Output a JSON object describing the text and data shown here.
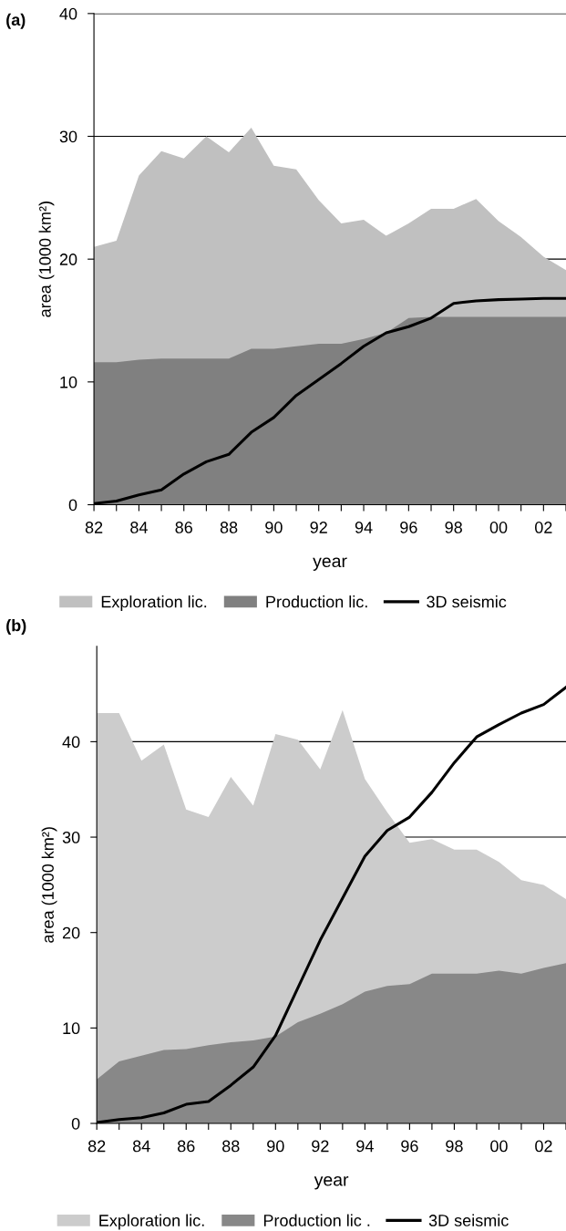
{
  "chart_data": [
    {
      "type": "area",
      "title": "(a)",
      "xlabel": "year",
      "ylabel": "area (1000 km²)",
      "x": [
        1982,
        1983,
        1984,
        1985,
        1986,
        1987,
        1988,
        1989,
        1990,
        1991,
        1992,
        1993,
        1994,
        1995,
        1996,
        1997,
        1998,
        1999,
        2000,
        2001,
        2002,
        2003
      ],
      "series": [
        {
          "name": "Exploration lic.",
          "color": "#c0c0c0",
          "values": [
            21.0,
            21.5,
            26.8,
            28.8,
            28.2,
            30.0,
            28.7,
            30.7,
            27.6,
            27.3,
            24.8,
            22.9,
            23.2,
            21.9,
            22.9,
            24.1,
            24.1,
            24.9,
            23.1,
            21.8,
            20.2,
            19.1
          ]
        },
        {
          "name": "Production lic.",
          "color": "#808080",
          "values": [
            11.6,
            11.6,
            11.8,
            11.9,
            11.9,
            11.9,
            11.9,
            12.7,
            12.7,
            12.9,
            13.1,
            13.1,
            13.5,
            14.0,
            15.2,
            15.3,
            15.3,
            15.3,
            15.3,
            15.3,
            15.3,
            15.3
          ]
        },
        {
          "name": "3D seismic",
          "type": "line",
          "color": "#000000",
          "values": [
            0.1,
            0.3,
            0.8,
            1.2,
            2.5,
            3.5,
            4.1,
            5.9,
            7.1,
            8.9,
            10.2,
            11.5,
            12.9,
            14.0,
            14.5,
            15.2,
            16.4,
            16.6,
            16.7,
            16.75,
            16.8,
            16.8
          ]
        }
      ],
      "xlim": [
        1982,
        2003
      ],
      "xticks": [
        {
          "value": 1982,
          "label": "82"
        },
        {
          "value": 1983,
          "label": null
        },
        {
          "value": 1984,
          "label": "84"
        },
        {
          "value": 1985,
          "label": null
        },
        {
          "value": 1986,
          "label": "86"
        },
        {
          "value": 1987,
          "label": null
        },
        {
          "value": 1988,
          "label": "88"
        },
        {
          "value": 1989,
          "label": null
        },
        {
          "value": 1990,
          "label": "90"
        },
        {
          "value": 1991,
          "label": null
        },
        {
          "value": 1992,
          "label": "92"
        },
        {
          "value": 1993,
          "label": null
        },
        {
          "value": 1994,
          "label": "94"
        },
        {
          "value": 1995,
          "label": null
        },
        {
          "value": 1996,
          "label": "96"
        },
        {
          "value": 1997,
          "label": null
        },
        {
          "value": 1998,
          "label": "98"
        },
        {
          "value": 1999,
          "label": null
        },
        {
          "value": 2000,
          "label": "00"
        },
        {
          "value": 2001,
          "label": null
        },
        {
          "value": 2002,
          "label": "02"
        },
        {
          "value": 2003,
          "label": null
        }
      ],
      "ylim": [
        0,
        40
      ],
      "yticks": [
        0,
        10,
        20,
        30,
        40
      ],
      "grid": "y",
      "legend": "bottom",
      "marker": "none",
      "line_style": "solid"
    },
    {
      "type": "area",
      "title": "(b)",
      "xlabel": "year",
      "ylabel": "area (1000 km²)",
      "x": [
        1982,
        1983,
        1984,
        1985,
        1986,
        1987,
        1988,
        1989,
        1990,
        1991,
        1992,
        1993,
        1994,
        1995,
        1996,
        1997,
        1998,
        1999,
        2000,
        2001,
        2002,
        2003
      ],
      "series": [
        {
          "name": "Exploration lic.",
          "color": "#cccccc",
          "values": [
            43.0,
            43.0,
            38.0,
            39.7,
            32.9,
            32.1,
            36.3,
            33.3,
            40.8,
            40.2,
            37.1,
            43.3,
            36.1,
            32.6,
            29.4,
            29.8,
            28.7,
            28.7,
            27.4,
            25.5,
            25.0,
            23.5
          ]
        },
        {
          "name": "Production lic .",
          "color": "#888888",
          "values": [
            4.6,
            6.5,
            7.1,
            7.7,
            7.8,
            8.2,
            8.5,
            8.7,
            9.1,
            10.6,
            11.5,
            12.5,
            13.8,
            14.4,
            14.6,
            15.7,
            15.7,
            15.7,
            16.0,
            15.7,
            16.3,
            16.8
          ]
        },
        {
          "name": "3D seismic",
          "type": "line",
          "color": "#000000",
          "values": [
            0.1,
            0.4,
            0.6,
            1.1,
            2.0,
            2.3,
            4.0,
            5.9,
            9.2,
            14.2,
            19.2,
            23.6,
            28.0,
            30.7,
            32.1,
            34.7,
            37.8,
            40.5,
            41.8,
            43.0,
            43.9,
            45.7
          ]
        }
      ],
      "xlim": [
        1982,
        2003
      ],
      "xticks": [
        {
          "value": 1982,
          "label": "82"
        },
        {
          "value": 1983,
          "label": null
        },
        {
          "value": 1984,
          "label": "84"
        },
        {
          "value": 1985,
          "label": null
        },
        {
          "value": 1986,
          "label": "86"
        },
        {
          "value": 1987,
          "label": null
        },
        {
          "value": 1988,
          "label": "88"
        },
        {
          "value": 1989,
          "label": null
        },
        {
          "value": 1990,
          "label": "90"
        },
        {
          "value": 1991,
          "label": null
        },
        {
          "value": 1992,
          "label": "92"
        },
        {
          "value": 1993,
          "label": null
        },
        {
          "value": 1994,
          "label": "94"
        },
        {
          "value": 1995,
          "label": null
        },
        {
          "value": 1996,
          "label": "96"
        },
        {
          "value": 1997,
          "label": null
        },
        {
          "value": 1998,
          "label": "98"
        },
        {
          "value": 1999,
          "label": null
        },
        {
          "value": 2000,
          "label": "00"
        },
        {
          "value": 2001,
          "label": null
        },
        {
          "value": 2002,
          "label": "02"
        },
        {
          "value": 2003,
          "label": null
        }
      ],
      "ylim": [
        0,
        50
      ],
      "yticks": [
        0,
        10,
        20,
        30,
        40
      ],
      "grid": "y",
      "legend": "bottom",
      "marker": "none",
      "line_style": "solid"
    }
  ]
}
